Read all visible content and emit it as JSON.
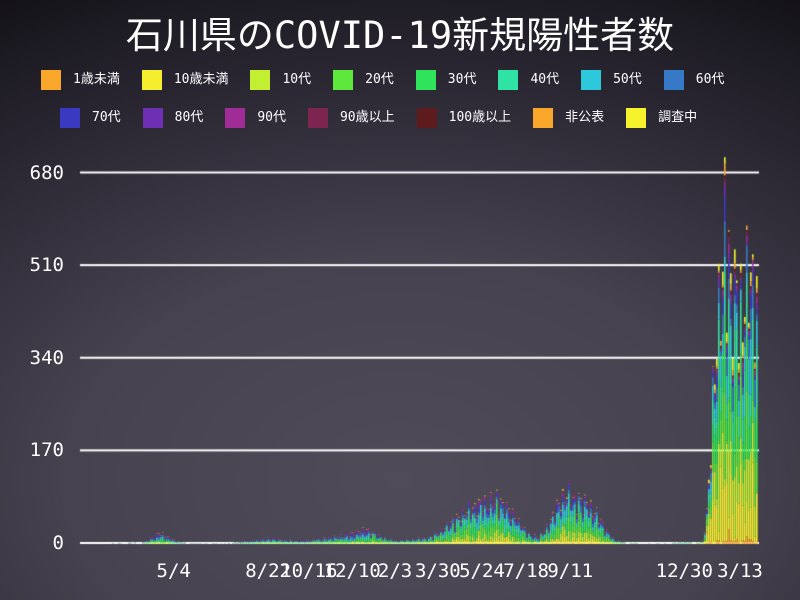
{
  "chart_data": {
    "type": "stacked-bar",
    "title": "石川県のCOVID-19新規陽性者数",
    "description": "Daily new COVID-19 positive cases in Ishikawa Prefecture, stacked by age group, early 2020 through 3/13 (2022)",
    "legend_position": "top",
    "y_axis": {
      "ticks": [
        0,
        170,
        340,
        510,
        680
      ],
      "max": 680,
      "grid": true,
      "grid_color": "#ffffff"
    },
    "x_axis": {
      "ticks": [
        {
          "label": "5/4",
          "f": 0.138
        },
        {
          "label": "8/22",
          "f": 0.277
        },
        {
          "label": "10/16",
          "f": 0.337
        },
        {
          "label": "12/10",
          "f": 0.401
        },
        {
          "label": "2/3",
          "f": 0.464
        },
        {
          "label": "3/30",
          "f": 0.527
        },
        {
          "label": "5/24",
          "f": 0.592
        },
        {
          "label": "7/18",
          "f": 0.657
        },
        {
          "label": "9/11",
          "f": 0.722
        },
        {
          "label": "12/30",
          "f": 0.89
        },
        {
          "label": "3/13",
          "f": 0.972
        }
      ]
    },
    "legend_rows": [
      [
        {
          "label": "1歳未満",
          "color": "#f9a72b"
        },
        {
          "label": "10歳未満",
          "color": "#f5ee2f"
        },
        {
          "label": "10代",
          "color": "#c3ef32"
        },
        {
          "label": "20代",
          "color": "#5fe73c"
        },
        {
          "label": "30代",
          "color": "#2fe35a"
        },
        {
          "label": "40代",
          "color": "#2fe3a5"
        },
        {
          "label": "50代",
          "color": "#2ec8dd"
        },
        {
          "label": "60代",
          "color": "#3679c6"
        }
      ],
      [
        {
          "label": "70代",
          "color": "#3a39c2"
        },
        {
          "label": "80代",
          "color": "#6e2fb4"
        },
        {
          "label": "90代",
          "color": "#9f2c97"
        },
        {
          "label": "90歳以上",
          "color": "#7d2450"
        },
        {
          "label": "100歳以上",
          "color": "#5e1b1e"
        },
        {
          "label": "非公表",
          "color": "#f9a72b"
        },
        {
          "label": "調査中",
          "color": "#f6f32c"
        }
      ]
    ],
    "peak": 710,
    "envelope": [
      [
        0.0295,
        0
      ],
      [
        0.0383,
        1
      ],
      [
        0.0515,
        2
      ],
      [
        0.0884,
        3
      ],
      [
        0.0987,
        10
      ],
      [
        0.106,
        16
      ],
      [
        0.1149,
        26
      ],
      [
        0.1267,
        18
      ],
      [
        0.1384,
        9
      ],
      [
        0.1517,
        3
      ],
      [
        0.1694,
        1
      ],
      [
        0.2135,
        1
      ],
      [
        0.2356,
        5
      ],
      [
        0.2577,
        9
      ],
      [
        0.2769,
        13
      ],
      [
        0.3019,
        9
      ],
      [
        0.324,
        7
      ],
      [
        0.3461,
        11
      ],
      [
        0.3682,
        15
      ],
      [
        0.3903,
        21
      ],
      [
        0.4094,
        28
      ],
      [
        0.4212,
        33
      ],
      [
        0.4344,
        22
      ],
      [
        0.4506,
        12
      ],
      [
        0.4668,
        8
      ],
      [
        0.4889,
        10
      ],
      [
        0.5125,
        15
      ],
      [
        0.5316,
        32
      ],
      [
        0.5523,
        58
      ],
      [
        0.5714,
        78
      ],
      [
        0.5921,
        92
      ],
      [
        0.6112,
        100
      ],
      [
        0.6274,
        84
      ],
      [
        0.6421,
        58
      ],
      [
        0.6568,
        26
      ],
      [
        0.6716,
        16
      ],
      [
        0.6863,
        36
      ],
      [
        0.701,
        82
      ],
      [
        0.7158,
        115
      ],
      [
        0.7305,
        102
      ],
      [
        0.7452,
        95
      ],
      [
        0.7599,
        68
      ],
      [
        0.7732,
        32
      ],
      [
        0.7864,
        10
      ],
      [
        0.8012,
        3
      ],
      [
        0.8468,
        1
      ],
      [
        0.8954,
        4
      ],
      [
        0.9043,
        2
      ],
      [
        0.9161,
        6
      ],
      [
        0.9234,
        90
      ],
      [
        0.9308,
        320
      ],
      [
        0.9367,
        500
      ],
      [
        0.944,
        610
      ],
      [
        0.9499,
        710
      ],
      [
        0.9573,
        560
      ],
      [
        0.9661,
        610
      ],
      [
        0.975,
        500
      ],
      [
        0.9838,
        630
      ],
      [
        0.9912,
        560
      ],
      [
        0.9971,
        500
      ],
      [
        0.9985,
        480
      ]
    ],
    "age_mix_by_era": {
      "breakpoints_f": [
        0.43,
        0.9
      ],
      "mix": [
        [
          1,
          5,
          6,
          13,
          12,
          12,
          12,
          11,
          9,
          8,
          5,
          2.5,
          1,
          1,
          1.5
        ],
        [
          1,
          9,
          11,
          17,
          15,
          13,
          11,
          8,
          5,
          4,
          2.5,
          1.5,
          0.5,
          0.5,
          1
        ],
        [
          1.5,
          21,
          14,
          13,
          12,
          11,
          9,
          6,
          3.5,
          2,
          1.3,
          0.7,
          0.5,
          1.5,
          3
        ]
      ]
    }
  },
  "colors": {
    "background_center": "#4f4b59",
    "background_edge": "#000000",
    "text": "#ffffff",
    "grid": "#ffffff"
  }
}
